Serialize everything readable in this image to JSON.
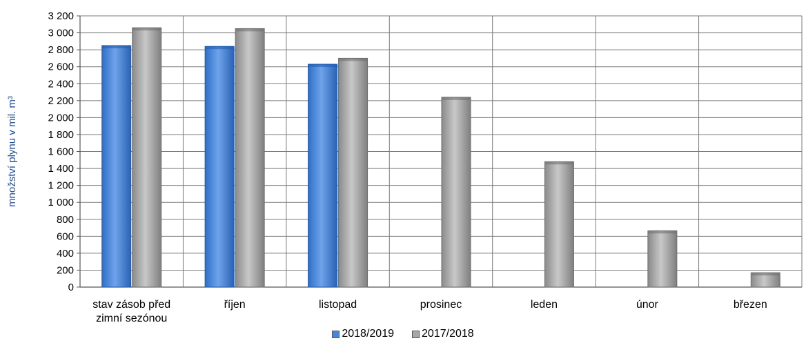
{
  "chart_data": {
    "type": "bar",
    "categories": [
      [
        "stav zásob před",
        "zimní sezónou"
      ],
      [
        "říjen"
      ],
      [
        "listopad"
      ],
      [
        "prosinec"
      ],
      [
        "leden"
      ],
      [
        "únor"
      ],
      [
        "březen"
      ]
    ],
    "series": [
      {
        "name": "2018/2019",
        "color": "#4a86d8",
        "values": [
          2850,
          2840,
          2630,
          null,
          null,
          null,
          null
        ]
      },
      {
        "name": "2017/2018",
        "color": "#a6a6a6",
        "values": [
          3060,
          3050,
          2700,
          2240,
          1480,
          665,
          170
        ]
      }
    ],
    "ylabel": "množství plynu v mil. m³",
    "ylabel_color": "#1f4e9c",
    "ylim": [
      0,
      3200
    ],
    "yticks": [
      0,
      200,
      400,
      600,
      800,
      1000,
      1200,
      1400,
      1600,
      1800,
      2000,
      2200,
      2400,
      2600,
      2800,
      3000,
      3200
    ],
    "ytick_labels": [
      "0",
      "200",
      "400",
      "600",
      "800",
      "1 000",
      "1 200",
      "1 400",
      "1 600",
      "1 800",
      "2 000",
      "2 200",
      "2 400",
      "2 600",
      "2 800",
      "3 000",
      "3 200"
    ],
    "grid": true,
    "legend_position": "bottom"
  }
}
